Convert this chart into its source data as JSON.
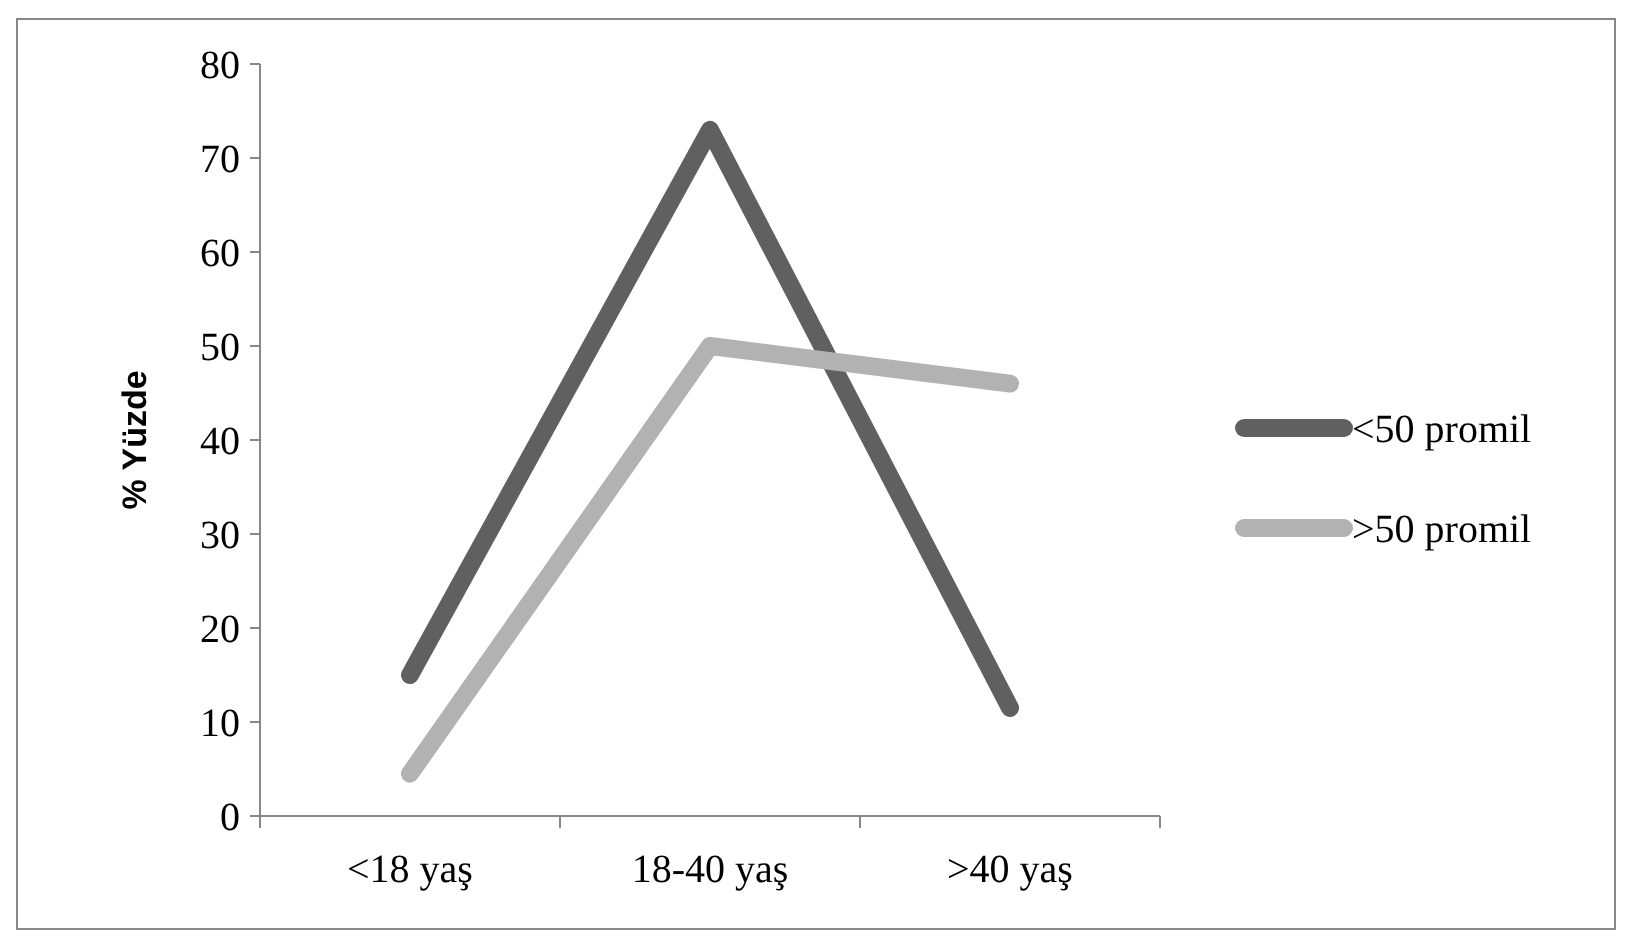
{
  "chart_data": {
    "type": "line",
    "ylabel": "% Yüzde",
    "categories": [
      "<18 yaş",
      "18-40 yaş",
      ">40 yaş"
    ],
    "series": [
      {
        "name": "<50 promil",
        "color": "#606060",
        "values": [
          15,
          73,
          11.5
        ]
      },
      {
        "name": ">50 promil",
        "color": "#b2b2b2",
        "values": [
          4.5,
          50,
          46
        ]
      }
    ],
    "ylim": [
      0,
      80
    ],
    "yticks": [
      0,
      10,
      20,
      30,
      40,
      50,
      60,
      70,
      80
    ],
    "legend": "right",
    "marker": "none",
    "line_style": "solid"
  }
}
